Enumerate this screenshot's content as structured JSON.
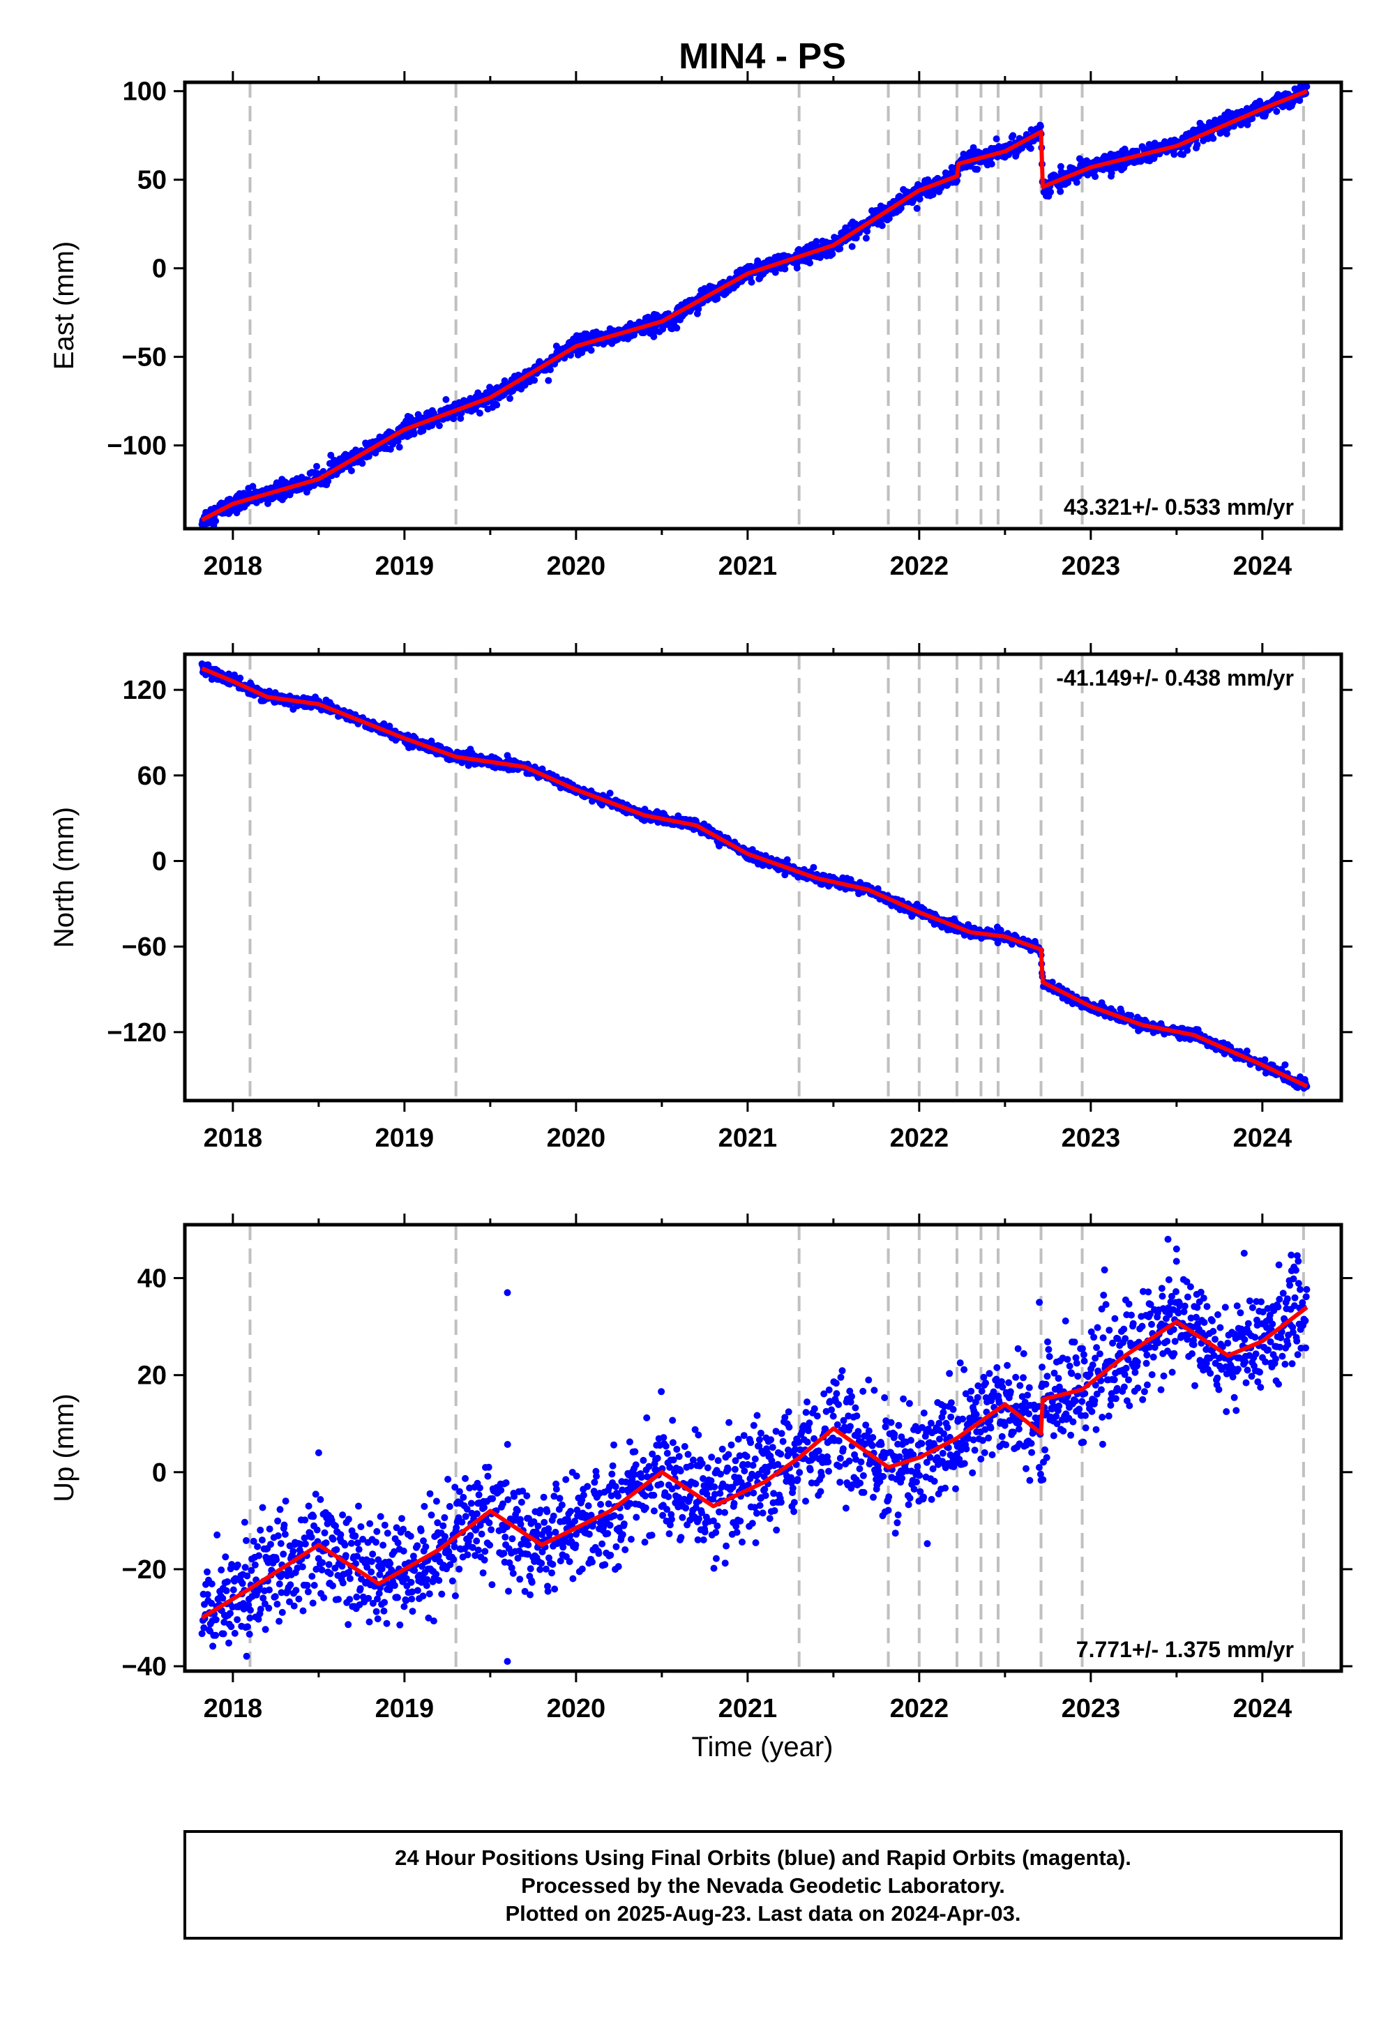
{
  "title": "MIN4 - PS",
  "xlabel": "Time (year)",
  "footer": {
    "line1": "24 Hour Positions Using Final Orbits (blue) and Rapid Orbits (magenta).",
    "line2": "Processed by the Nevada Geodetic Laboratory.",
    "line3": "Plotted on 2025-Aug-23. Last data on 2024-Apr-03."
  },
  "colors": {
    "points": "#0000ff",
    "model": "#ff0000",
    "events": "#c0c0c0",
    "axes": "#000000"
  },
  "chart_data": [
    {
      "type": "scatter",
      "name": "east",
      "ylabel": "East (mm)",
      "rate_label": "43.321+/- 0.533 mm/yr",
      "rate_position": "bottom-right",
      "xlim": [
        2017.72,
        2024.46
      ],
      "ylim": [
        -147,
        105
      ],
      "xticks": [
        2018,
        2019,
        2020,
        2021,
        2022,
        2023,
        2024
      ],
      "yticks": [
        100,
        50,
        0,
        -50,
        -100
      ],
      "ytick_labels": [
        "100",
        "50",
        "0",
        "−50",
        "−100"
      ],
      "event_lines": [
        2018.1,
        2019.3,
        2021.3,
        2021.82,
        2022.0,
        2022.22,
        2022.36,
        2022.46,
        2022.71,
        2022.95,
        2024.24
      ],
      "model": [
        [
          2017.82,
          -142
        ],
        [
          2018.0,
          -133
        ],
        [
          2018.5,
          -119
        ],
        [
          2019.0,
          -91
        ],
        [
          2019.5,
          -73
        ],
        [
          2020.0,
          -44
        ],
        [
          2020.5,
          -30
        ],
        [
          2021.0,
          -3
        ],
        [
          2021.5,
          13
        ],
        [
          2022.0,
          44
        ],
        [
          2022.22,
          52
        ],
        [
          2022.23,
          59
        ],
        [
          2022.5,
          66
        ],
        [
          2022.71,
          77
        ],
        [
          2022.72,
          46
        ],
        [
          2023.0,
          57
        ],
        [
          2023.5,
          69
        ],
        [
          2024.0,
          90
        ],
        [
          2024.26,
          100
        ]
      ],
      "noise": 2.5,
      "outliers": []
    },
    {
      "type": "scatter",
      "name": "north",
      "ylabel": "North (mm)",
      "rate_label": "-41.149+/- 0.438 mm/yr",
      "rate_position": "top-right",
      "xlim": [
        2017.72,
        2024.46
      ],
      "ylim": [
        -168,
        145
      ],
      "xticks": [
        2018,
        2019,
        2020,
        2021,
        2022,
        2023,
        2024
      ],
      "yticks": [
        120,
        60,
        0,
        -60,
        -120
      ],
      "ytick_labels": [
        "120",
        "60",
        "0",
        "−60",
        "−120"
      ],
      "event_lines": [
        2018.1,
        2019.3,
        2021.3,
        2021.82,
        2022.0,
        2022.22,
        2022.36,
        2022.46,
        2022.71,
        2022.95,
        2024.24
      ],
      "model": [
        [
          2017.82,
          135
        ],
        [
          2018.0,
          126
        ],
        [
          2018.2,
          115
        ],
        [
          2018.5,
          110
        ],
        [
          2019.0,
          86
        ],
        [
          2019.3,
          73
        ],
        [
          2019.7,
          66
        ],
        [
          2020.0,
          50
        ],
        [
          2020.4,
          32
        ],
        [
          2020.7,
          25
        ],
        [
          2021.0,
          5
        ],
        [
          2021.4,
          -12
        ],
        [
          2021.7,
          -20
        ],
        [
          2022.0,
          -36
        ],
        [
          2022.3,
          -50
        ],
        [
          2022.5,
          -53
        ],
        [
          2022.71,
          -62
        ],
        [
          2022.72,
          -85
        ],
        [
          2023.0,
          -102
        ],
        [
          2023.3,
          -115
        ],
        [
          2023.6,
          -122
        ],
        [
          2024.0,
          -143
        ],
        [
          2024.26,
          -158
        ]
      ],
      "noise": 1.8,
      "outliers": [
        [
          2019.6,
          74
        ]
      ]
    },
    {
      "type": "scatter",
      "name": "up",
      "ylabel": "Up (mm)",
      "rate_label": "7.771+/- 1.375 mm/yr",
      "rate_position": "bottom-right",
      "xlim": [
        2017.72,
        2024.46
      ],
      "ylim": [
        -41,
        51
      ],
      "xticks": [
        2018,
        2019,
        2020,
        2021,
        2022,
        2023,
        2024
      ],
      "yticks": [
        40,
        20,
        0,
        -20,
        -40
      ],
      "ytick_labels": [
        "40",
        "20",
        "0",
        "−20",
        "−40"
      ],
      "event_lines": [
        2018.1,
        2019.3,
        2021.3,
        2021.82,
        2022.0,
        2022.22,
        2022.36,
        2022.46,
        2022.71,
        2022.95,
        2024.24
      ],
      "model": [
        [
          2017.82,
          -30
        ],
        [
          2018.1,
          -24
        ],
        [
          2018.5,
          -15
        ],
        [
          2018.85,
          -23
        ],
        [
          2019.2,
          -16
        ],
        [
          2019.5,
          -8
        ],
        [
          2019.8,
          -15
        ],
        [
          2020.2,
          -8
        ],
        [
          2020.5,
          0
        ],
        [
          2020.8,
          -7
        ],
        [
          2021.1,
          -2
        ],
        [
          2021.3,
          3
        ],
        [
          2021.5,
          9
        ],
        [
          2021.82,
          1
        ],
        [
          2022.0,
          3
        ],
        [
          2022.22,
          7
        ],
        [
          2022.5,
          14
        ],
        [
          2022.71,
          8
        ],
        [
          2022.72,
          15
        ],
        [
          2022.95,
          17
        ],
        [
          2023.2,
          24
        ],
        [
          2023.5,
          31
        ],
        [
          2023.8,
          24
        ],
        [
          2024.0,
          27
        ],
        [
          2024.26,
          34
        ]
      ],
      "noise": 5.5,
      "outliers": [
        [
          2019.6,
          37
        ],
        [
          2019.6,
          -39
        ],
        [
          2022.7,
          35
        ],
        [
          2018.5,
          4
        ],
        [
          2023.45,
          48
        ],
        [
          2023.5,
          46
        ]
      ]
    }
  ]
}
